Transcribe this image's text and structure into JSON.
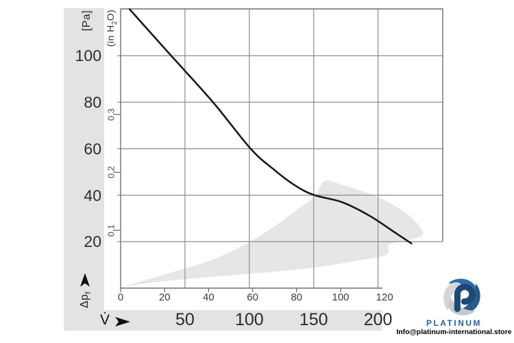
{
  "labels": {
    "pressure_unit": "[Pa]",
    "inh2o_pre": "(in H",
    "inh2o_sub": "2",
    "inh2o_post": "O)",
    "dp_main": "Δp",
    "dp_sub": "f",
    "flow": "V̇"
  },
  "branding": {
    "name": "PLATINUM",
    "email": "Info@platinum-international.store"
  },
  "colors": {
    "band": "#e3e3e4",
    "operating_region": "#e6e6e7",
    "grid": "#8c8c8c",
    "axis": "#6f6f6f",
    "curve": "#191919",
    "secondary_text": "#4a4a4a",
    "logo_blue_light": "#2e6da6",
    "logo_blue_dark": "#255a8c",
    "logo_gray_light": "#d4d6d8",
    "logo_gray_dark": "#c6c9cc",
    "logo_p": "#1c4876",
    "brand_text": "#2b6094"
  },
  "chart_data": {
    "type": "line",
    "title": "",
    "y_axis": {
      "label": "Δpf",
      "unit": "[Pa]",
      "ticks": [
        100,
        80,
        60,
        40,
        20
      ],
      "labels": [
        "100",
        "80",
        "60",
        "40",
        "20"
      ],
      "range": [
        0,
        120
      ],
      "gridlines": true
    },
    "y_axis_secondary": {
      "unit": "(in H2O)",
      "ticks": [
        0.3,
        0.2,
        0.1
      ],
      "labels": [
        "0,3",
        "0,2",
        "0,1"
      ],
      "pa_per_unit": 249.09
    },
    "x_axis": {
      "label": "V̇",
      "ticks": [
        0,
        20,
        40,
        60,
        80,
        100,
        120
      ],
      "labels": [
        "0",
        "20",
        "40",
        "60",
        "80",
        "100",
        "120"
      ],
      "range": [
        0,
        146
      ]
    },
    "x_axis_secondary": {
      "ticks": [
        50,
        100,
        150,
        200
      ],
      "labels": [
        "50",
        "100",
        "150",
        "200"
      ],
      "gridline_values": [
        50,
        100,
        150,
        200
      ],
      "range": [
        0,
        250
      ]
    },
    "series": [
      {
        "name": "fan-pressure-curve",
        "points": [
          [
            4.1,
            120
          ],
          [
            23,
            100
          ],
          [
            42,
            80
          ],
          [
            59.1,
            60
          ],
          [
            69.7,
            51
          ],
          [
            79.1,
            44.3
          ],
          [
            87.8,
            40.1
          ],
          [
            100.9,
            36.9
          ],
          [
            113.4,
            31
          ],
          [
            123.8,
            24.5
          ],
          [
            132.2,
            19.2
          ]
        ]
      }
    ],
    "operating_region": {
      "name": "recommended-operating-range",
      "points": [
        [
          1.3,
          0.6
        ],
        [
          20,
          5.9
        ],
        [
          38.8,
          11.2
        ],
        [
          54.4,
          17.7
        ],
        [
          70,
          26.6
        ],
        [
          80.3,
          33.9
        ],
        [
          88.1,
          39.3
        ],
        [
          92.8,
          46.1
        ],
        [
          101.3,
          44.3
        ],
        [
          113.8,
          40.4
        ],
        [
          124.7,
          35.4
        ],
        [
          132.5,
          30.1
        ],
        [
          137.5,
          23.6
        ],
        [
          132.5,
          21.0
        ],
        [
          124.7,
          19.5
        ],
        [
          121.6,
          18.3
        ],
        [
          120.6,
          14.2
        ],
        [
          107.5,
          11.8
        ],
        [
          88.8,
          8.9
        ],
        [
          70,
          7.1
        ],
        [
          51.3,
          5.6
        ],
        [
          32.5,
          4.1
        ],
        [
          13.8,
          2.4
        ]
      ]
    }
  }
}
